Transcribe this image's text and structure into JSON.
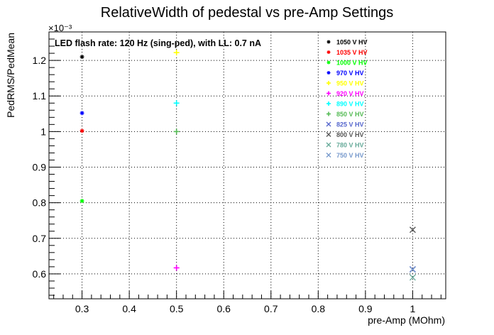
{
  "chart_data": {
    "type": "scatter",
    "title": "RelativeWidth of pedestal vs pre-Amp Settings",
    "xlabel": "pre-Amp (MOhm)",
    "ylabel": "PedRMS/PedMean",
    "y_exponent_label": "×10⁻³",
    "annotation": "LED flash rate: 120 Hz  (sing-ped), with LL: 0.7 nA",
    "xlim": [
      0.23,
      1.07
    ],
    "ylim": [
      0.53,
      1.28
    ],
    "grid": true,
    "legend_position": "top-right",
    "x_ticks_major": [
      0.3,
      0.4,
      0.5,
      0.6,
      0.7,
      0.8,
      0.9,
      1
    ],
    "x_tick_labels": [
      "0.3",
      "0.4",
      "0.5",
      "0.6",
      "0.7",
      "0.8",
      "0.9",
      "1"
    ],
    "y_ticks_major": [
      0.6,
      0.7,
      0.8,
      0.9,
      1.0,
      1.1,
      1.2
    ],
    "y_tick_labels": [
      "0.6",
      "0.7",
      "0.8",
      "0.9",
      "1",
      "1.1",
      "1.2"
    ],
    "series": [
      {
        "name": "1050 V HV",
        "color": "#000000",
        "marker": "star",
        "points": [
          [
            0.3,
            1.21
          ]
        ]
      },
      {
        "name": "1035 V HV",
        "color": "#ff0000",
        "marker": "star",
        "points": [
          [
            0.3,
            1.002
          ]
        ]
      },
      {
        "name": "1000 V HV",
        "color": "#00ff00",
        "marker": "star",
        "points": [
          [
            0.3,
            0.805
          ]
        ]
      },
      {
        "name": "970 V HV",
        "color": "#0000ff",
        "marker": "star",
        "points": [
          [
            0.3,
            1.052
          ]
        ]
      },
      {
        "name": "950 V HV",
        "color": "#ffff00",
        "marker": "plus",
        "points": [
          [
            0.5,
            1.222
          ]
        ]
      },
      {
        "name": "920 V HV",
        "color": "#ff00ff",
        "marker": "plus",
        "points": [
          [
            0.5,
            0.617
          ]
        ]
      },
      {
        "name": "890 V HV",
        "color": "#00ffff",
        "marker": "plus",
        "points": [
          [
            0.5,
            1.08
          ]
        ]
      },
      {
        "name": "850 V HV",
        "color": "#55bb55",
        "marker": "plus",
        "points": [
          [
            0.5,
            1.0
          ]
        ]
      },
      {
        "name": "825 V HV",
        "color": "#5566cc",
        "marker": "cross",
        "points": [
          [
            1.0,
            0.613
          ]
        ]
      },
      {
        "name": "800 V HV",
        "color": "#555555",
        "marker": "cross",
        "points": [
          [
            1.0,
            0.724
          ]
        ]
      },
      {
        "name": "780 V HV",
        "color": "#66aa99",
        "marker": "cross",
        "points": [
          [
            1.0,
            0.59
          ]
        ]
      },
      {
        "name": "750 V HV",
        "color": "#7799cc",
        "marker": "cross",
        "points": [
          [
            1.0,
            0.612
          ]
        ]
      }
    ]
  }
}
